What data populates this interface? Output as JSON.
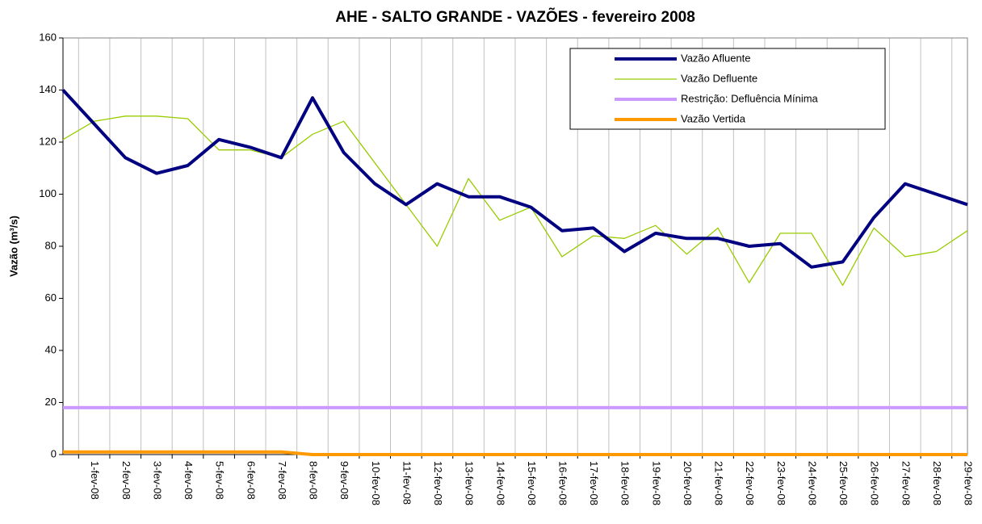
{
  "chart_data": {
    "type": "line",
    "title": "AHE - SALTO GRANDE - VAZÕES - fevereiro 2008",
    "y_label": "Vazão (m³/s)",
    "categories": [
      null,
      "1-fev-08",
      "2-fev-08",
      "3-fev-08",
      "4-fev-08",
      "5-fev-08",
      "6-fev-08",
      "7-fev-08",
      "8-fev-08",
      "9-fev-08",
      "10-fev-08",
      "11-fev-08",
      "12-fev-08",
      "13-fev-08",
      "14-fev-08",
      "15-fev-08",
      "16-fev-08",
      "17-fev-08",
      "18-fev-08",
      "19-fev-08",
      "20-fev-08",
      "21-fev-08",
      "22-fev-08",
      "23-fev-08",
      "24-fev-08",
      "25-fev-08",
      "26-fev-08",
      "27-fev-08",
      "28-fev-08",
      "29-fev-08"
    ],
    "series": [
      {
        "name": "Vazão Afluente",
        "color": "#000080",
        "width": 4,
        "values": [
          140,
          127,
          114,
          108,
          111,
          121,
          118,
          114,
          137,
          116,
          104,
          96,
          104,
          99,
          99,
          95,
          86,
          87,
          78,
          85,
          83,
          83,
          80,
          81,
          72,
          74,
          91,
          104,
          100,
          96
        ]
      },
      {
        "name": "Vazão Defluente",
        "color": "#99cc00",
        "width": 1.3,
        "values": [
          121,
          128,
          130,
          130,
          129,
          117,
          117,
          114,
          123,
          128,
          112,
          96,
          80,
          106,
          90,
          95,
          76,
          84,
          83,
          88,
          77,
          87,
          66,
          85,
          85,
          65,
          87,
          76,
          78,
          86
        ]
      },
      {
        "name": "Restrição: Defluência Mínima",
        "color": "#cc99ff",
        "width": 4,
        "values": [
          18,
          18,
          18,
          18,
          18,
          18,
          18,
          18,
          18,
          18,
          18,
          18,
          18,
          18,
          18,
          18,
          18,
          18,
          18,
          18,
          18,
          18,
          18,
          18,
          18,
          18,
          18,
          18,
          18,
          18
        ]
      },
      {
        "name": "Vazão Vertida",
        "color": "#ff9900",
        "width": 4,
        "values": [
          1,
          1,
          1,
          1,
          1,
          1,
          1,
          1,
          0,
          0,
          0,
          0,
          0,
          0,
          0,
          0,
          0,
          0,
          0,
          0,
          0,
          0,
          0,
          0,
          0,
          0,
          0,
          0,
          0,
          0
        ]
      }
    ],
    "ylim": [
      0,
      160
    ],
    "yticks": [
      0,
      20,
      40,
      60,
      80,
      100,
      120,
      140,
      160
    ],
    "grid": "x",
    "legend": "top-right"
  }
}
